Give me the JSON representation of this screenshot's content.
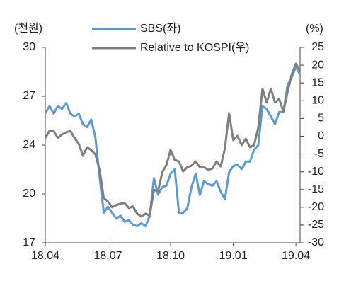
{
  "chart_data": {
    "type": "line",
    "y_label": "(천원)",
    "y2_label": "(%)",
    "x": [
      0,
      0.2,
      0.4,
      0.6,
      0.8,
      1.0,
      1.2,
      1.4,
      1.6,
      1.8,
      2.0,
      2.2,
      2.4,
      2.6,
      2.8,
      3.0,
      3.2,
      3.4,
      3.6,
      3.8,
      4.0,
      4.2,
      4.4,
      4.6,
      4.8,
      5.0,
      5.2,
      5.4,
      5.6,
      5.8,
      6.0,
      6.2,
      6.4,
      6.6,
      6.8,
      7.0,
      7.2,
      7.4,
      7.6,
      7.8,
      8.0,
      8.2,
      8.4,
      8.6,
      8.8,
      9.0,
      9.2,
      9.4,
      9.6,
      9.8,
      10.0,
      10.2,
      10.4,
      10.6,
      10.8,
      11.0,
      11.2,
      11.4,
      11.6,
      11.8,
      12.0,
      12.2
    ],
    "xlim": [
      0,
      12.2
    ],
    "xticks": [
      {
        "value": 0,
        "label": "18.04"
      },
      {
        "value": 3,
        "label": "18.07"
      },
      {
        "value": 6,
        "label": "18.10"
      },
      {
        "value": 9,
        "label": "19.01"
      },
      {
        "value": 12,
        "label": "19.04"
      }
    ],
    "ylim": [
      17,
      30
    ],
    "yticks": [
      17,
      {
        "value": 20.25,
        "label": "20"
      },
      {
        "value": 23.5,
        "label": "24"
      },
      {
        "value": 26.75,
        "label": "27"
      },
      30
    ],
    "y2lim": [
      -30,
      25
    ],
    "y2ticks": [
      -30,
      -25,
      -20,
      -15,
      -10,
      -5,
      0,
      5,
      10,
      15,
      20,
      25
    ],
    "series": [
      {
        "name": "SBS(좌)",
        "color": "#5b9bd5",
        "values": [
          25.6,
          26.1,
          25.6,
          26.1,
          25.9,
          26.3,
          25.6,
          25.4,
          25.6,
          24.9,
          24.7,
          25.2,
          24.0,
          21.4,
          19.0,
          19.4,
          19.0,
          18.6,
          18.8,
          18.4,
          18.5,
          18.2,
          18.1,
          18.3,
          18.1,
          18.8,
          21.3,
          20.2,
          20.7,
          20.8,
          21.6,
          21.9,
          19.0,
          19.0,
          19.3,
          20.7,
          21.6,
          20.2,
          21.1,
          20.9,
          20.8,
          21.1,
          20.4,
          19.9,
          21.7,
          22.1,
          22.2,
          21.9,
          22.4,
          22.4,
          23.2,
          23.5,
          26.1,
          25.9,
          25.4,
          24.9,
          25.7,
          25.7,
          27.5,
          28.0,
          28.7,
          28.2
        ]
      },
      {
        "name": "Relative to KOSPI(우)",
        "color": "#7f7f7f",
        "axis": "y2",
        "values": [
          -0.5,
          1.5,
          1.5,
          -0.5,
          0.5,
          1.1,
          1.5,
          -0.5,
          -2.1,
          -5.5,
          -3.1,
          -3.9,
          -5.1,
          -9.5,
          -17.4,
          -18.4,
          -20.0,
          -19.4,
          -19.0,
          -18.8,
          -20.2,
          -19.8,
          -21.8,
          -22.6,
          -21.8,
          -22.4,
          -15.1,
          -15.5,
          -10.1,
          -8.1,
          -3.9,
          -6.7,
          -7.1,
          -9.9,
          -8.7,
          -8.3,
          -7.1,
          -8.7,
          -8.7,
          -9.5,
          -9.1,
          -7.1,
          -8.5,
          -3.5,
          6.5,
          -1.1,
          0.1,
          -2.5,
          -0.7,
          -3.1,
          -2.5,
          2.5,
          13.4,
          9.5,
          13.4,
          9.5,
          10.5,
          6.9,
          12.4,
          17.4,
          20.4,
          18.4
        ]
      }
    ]
  }
}
